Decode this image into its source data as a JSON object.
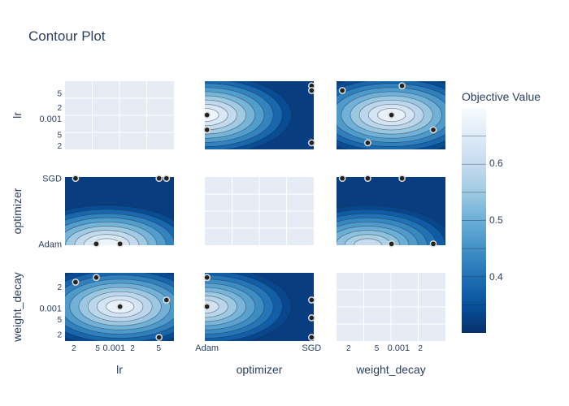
{
  "chart_data": {
    "type": "contour",
    "title": "Contour Plot",
    "params": [
      "lr",
      "optimizer",
      "weight_decay"
    ],
    "x_tick_labels": {
      "lr": [
        "2",
        "5",
        "0.001",
        "2",
        "5"
      ],
      "optimizer": [
        "Adam",
        "SGD"
      ],
      "weight_decay": [
        "2",
        "5",
        "0.001",
        "2"
      ]
    },
    "y_tick_labels": {
      "lr": [
        "5",
        "2",
        "0.001",
        "5",
        "2"
      ],
      "optimizer": [
        "SGD",
        "Adam"
      ],
      "weight_decay": [
        "2",
        "0.001",
        "5",
        "2"
      ]
    },
    "colorbar": {
      "title": "Objective Value",
      "ticks": [
        "0.6",
        "0.5",
        "0.4"
      ],
      "colors": [
        "#f7fbff",
        "#deebf7",
        "#c6dbef",
        "#9ecae1",
        "#6baed6",
        "#4292c6",
        "#2171b5",
        "#08519c",
        "#08306b"
      ]
    },
    "cells": [
      {
        "row": "lr",
        "col": "lr",
        "type": "empty"
      },
      {
        "row": "lr",
        "col": "optimizer",
        "type": "contour",
        "peaks": [
          {
            "x": 0.0,
            "y": 0.001,
            "value": 0.68
          }
        ],
        "trials": [
          {
            "x": "SGD",
            "y": 0.006
          },
          {
            "x": "SGD",
            "y": 0.0045
          },
          {
            "x": "Adam",
            "y": 0.001
          },
          {
            "x": "Adam",
            "y": 0.0004
          },
          {
            "x": "SGD",
            "y": 0.00018
          }
        ]
      },
      {
        "row": "lr",
        "col": "weight_decay",
        "type": "contour",
        "peaks": [
          {
            "x": 0.001,
            "y": 0.001,
            "value": 0.67
          }
        ],
        "trials": [
          {
            "x": 0.0015,
            "y": 0.006
          },
          {
            "x": 0.00015,
            "y": 0.0045
          },
          {
            "x": 0.001,
            "y": 0.001
          },
          {
            "x": 0.005,
            "y": 0.0004
          },
          {
            "x": 0.0004,
            "y": 0.00018
          }
        ]
      },
      {
        "row": "optimizer",
        "col": "lr",
        "type": "contour",
        "peaks": [
          {
            "x": 0.0006,
            "y": "Adam",
            "value": 0.68
          }
        ],
        "trials": [
          {
            "x": 0.00018,
            "y": "SGD"
          },
          {
            "x": 0.0045,
            "y": "SGD"
          },
          {
            "x": 0.006,
            "y": "SGD"
          },
          {
            "x": 0.0004,
            "y": "Adam"
          },
          {
            "x": 0.001,
            "y": "Adam"
          }
        ]
      },
      {
        "row": "optimizer",
        "col": "optimizer",
        "type": "empty"
      },
      {
        "row": "optimizer",
        "col": "weight_decay",
        "type": "contour",
        "peaks": [
          {
            "x": 0.0004,
            "y": "Adam",
            "value": 0.6
          }
        ],
        "trials": [
          {
            "x": 0.00015,
            "y": "SGD"
          },
          {
            "x": 0.0004,
            "y": "SGD"
          },
          {
            "x": 0.0015,
            "y": "SGD"
          },
          {
            "x": 0.001,
            "y": "Adam"
          },
          {
            "x": 0.005,
            "y": "Adam"
          }
        ]
      },
      {
        "row": "weight_decay",
        "col": "lr",
        "type": "contour",
        "peaks": [
          {
            "x": 0.001,
            "y": 0.001,
            "value": 0.67
          }
        ],
        "trials": [
          {
            "x": 0.0004,
            "y": 0.006
          },
          {
            "x": 0.00018,
            "y": 0.0045
          },
          {
            "x": 0.001,
            "y": 0.001
          },
          {
            "x": 0.006,
            "y": 0.0015
          },
          {
            "x": 0.0045,
            "y": 0.00015
          }
        ]
      },
      {
        "row": "weight_decay",
        "col": "optimizer",
        "type": "contour",
        "peaks": [
          {
            "x": 0.0,
            "y": 0.001,
            "value": 0.62
          }
        ],
        "trials": [
          {
            "x": "Adam",
            "y": 0.006
          },
          {
            "x": "Adam",
            "y": 0.001
          },
          {
            "x": "SGD",
            "y": 0.0015
          },
          {
            "x": "SGD",
            "y": 0.0005
          },
          {
            "x": "SGD",
            "y": 0.00015
          }
        ]
      },
      {
        "row": "weight_decay",
        "col": "weight_decay",
        "type": "empty"
      }
    ]
  }
}
